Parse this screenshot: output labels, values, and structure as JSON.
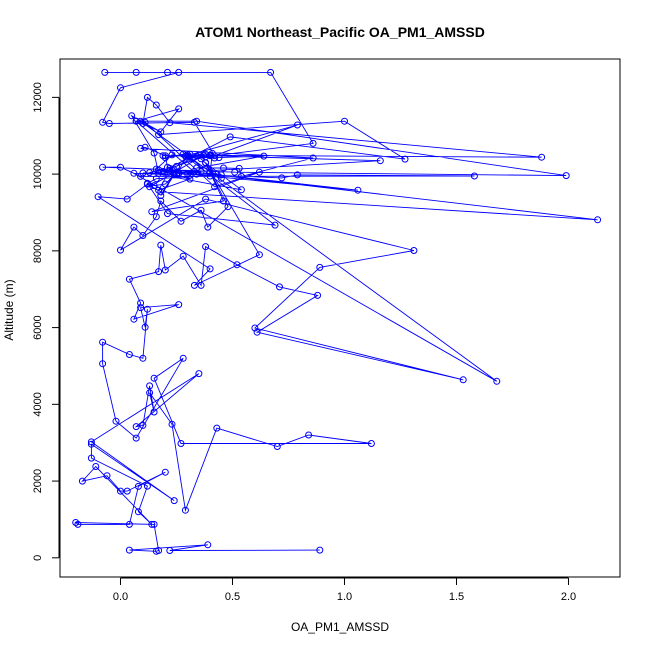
{
  "chart_data": {
    "type": "line",
    "title": "ATOM1 Northeast_Pacific OA_PM1_AMSSD",
    "xlabel": "OA_PM1_AMSSD",
    "ylabel": "Altitude (m)",
    "xlim": [
      -0.27,
      2.23
    ],
    "ylim": [
      -500,
      13000
    ],
    "x_ticks": [
      0.0,
      0.5,
      1.0,
      1.5,
      2.0
    ],
    "x_tick_labels": [
      "0.0",
      "0.5",
      "1.0",
      "1.5",
      "2.0"
    ],
    "y_ticks": [
      0,
      2000,
      4000,
      6000,
      8000,
      10000,
      12000
    ],
    "y_tick_labels": [
      "0",
      "2000",
      "4000",
      "6000",
      "8000",
      "10000",
      "12000"
    ],
    "grid": false,
    "legend": false,
    "marker": "open-circle",
    "series": [
      {
        "color": "#0000ff",
        "points": [
          [
            0.89,
            200
          ],
          [
            0.22,
            190
          ],
          [
            0.39,
            340
          ],
          [
            0.04,
            200
          ],
          [
            0.16,
            170
          ],
          [
            0.17,
            190
          ],
          [
            0.15,
            870
          ],
          [
            -0.2,
            920
          ],
          [
            -0.19,
            870
          ],
          [
            0.04,
            870
          ],
          [
            0.08,
            1860
          ],
          [
            0.2,
            2230
          ],
          [
            0.03,
            1740
          ],
          [
            0.0,
            1740
          ],
          [
            -0.06,
            2140
          ],
          [
            -0.17,
            2000
          ],
          [
            -0.11,
            2380
          ],
          [
            0.14,
            870
          ],
          [
            0.08,
            1200
          ],
          [
            0.12,
            1870
          ],
          [
            -0.13,
            2600
          ],
          [
            -0.13,
            2960
          ],
          [
            0.24,
            1490
          ],
          [
            -0.13,
            3020
          ],
          [
            0.35,
            4800
          ],
          [
            0.07,
            3420
          ],
          [
            0.1,
            3450
          ],
          [
            0.13,
            4480
          ],
          [
            0.15,
            3800
          ],
          [
            0.13,
            4300
          ],
          [
            0.23,
            3480
          ],
          [
            0.29,
            1240
          ],
          [
            0.43,
            3380
          ],
          [
            0.7,
            2900
          ],
          [
            0.84,
            3200
          ],
          [
            1.12,
            2980
          ],
          [
            0.27,
            2980
          ],
          [
            0.15,
            4680
          ],
          [
            0.28,
            5200
          ],
          [
            0.07,
            3120
          ],
          [
            -0.02,
            3560
          ],
          [
            -0.08,
            5060
          ],
          [
            -0.08,
            5620
          ],
          [
            0.04,
            5300
          ],
          [
            0.1,
            5200
          ],
          [
            0.12,
            6480
          ],
          [
            0.11,
            6010
          ],
          [
            0.09,
            6520
          ],
          [
            0.26,
            6600
          ],
          [
            0.06,
            6220
          ],
          [
            0.09,
            6640
          ],
          [
            0.04,
            7260
          ],
          [
            0.17,
            7460
          ],
          [
            0.18,
            8150
          ],
          [
            0.2,
            7500
          ],
          [
            0.28,
            7860
          ],
          [
            0.36,
            7100
          ],
          [
            0.38,
            8110
          ],
          [
            0.52,
            7640
          ],
          [
            0.71,
            7060
          ],
          [
            0.88,
            6840
          ],
          [
            0.61,
            5880
          ],
          [
            1.53,
            4640
          ],
          [
            0.6,
            5990
          ],
          [
            0.89,
            7570
          ],
          [
            1.31,
            8010
          ],
          [
            0.38,
            9350
          ],
          [
            0.0,
            8020
          ],
          [
            0.06,
            8620
          ],
          [
            0.1,
            8400
          ],
          [
            0.16,
            8890
          ],
          [
            0.18,
            9300
          ],
          [
            0.27,
            8770
          ],
          [
            0.36,
            9060
          ],
          [
            0.39,
            8620
          ],
          [
            0.48,
            9150
          ],
          [
            0.38,
            10300
          ],
          [
            0.62,
            7900
          ],
          [
            0.33,
            7100
          ],
          [
            0.4,
            7530
          ],
          [
            -0.1,
            9410
          ],
          [
            0.03,
            9350
          ],
          [
            0.12,
            9740
          ],
          [
            0.18,
            9540
          ],
          [
            2.13,
            8810
          ],
          [
            0.24,
            10110
          ],
          [
            1.06,
            9580
          ],
          [
            0.3,
            10000
          ],
          [
            0.72,
            9900
          ],
          [
            0.79,
            9980
          ],
          [
            1.58,
            9950
          ],
          [
            0.09,
            9940
          ],
          [
            0.0,
            10180
          ],
          [
            -0.08,
            10180
          ],
          [
            0.51,
            10050
          ],
          [
            1.99,
            9960
          ],
          [
            0.34,
            11380
          ],
          [
            0.07,
            11380
          ],
          [
            0.26,
            11700
          ],
          [
            0.17,
            11030
          ],
          [
            1.0,
            11380
          ],
          [
            1.27,
            10390
          ],
          [
            0.49,
            10970
          ],
          [
            0.17,
            10020
          ],
          [
            0.15,
            10550
          ],
          [
            0.05,
            11520
          ],
          [
            0.18,
            11100
          ],
          [
            0.1,
            11320
          ],
          [
            0.12,
            12000
          ],
          [
            0.16,
            11800
          ],
          [
            0.22,
            11340
          ],
          [
            1.88,
            10440
          ],
          [
            0.4,
            10490
          ],
          [
            0.3,
            10460
          ],
          [
            0.42,
            10420
          ],
          [
            0.38,
            10450
          ],
          [
            0.86,
            10800
          ],
          [
            0.67,
            12650
          ],
          [
            -0.07,
            12650
          ],
          [
            0.07,
            12650
          ],
          [
            0.21,
            12650
          ],
          [
            0.26,
            12650
          ],
          [
            0.0,
            12250
          ],
          [
            -0.08,
            11350
          ],
          [
            -0.05,
            11320
          ],
          [
            0.33,
            11350
          ],
          [
            0.42,
            10480
          ],
          [
            0.79,
            11280
          ],
          [
            0.29,
            10470
          ],
          [
            0.69,
            8670
          ],
          [
            0.21,
            8970
          ],
          [
            0.13,
            9670
          ],
          [
            0.37,
            10490
          ],
          [
            0.19,
            10480
          ],
          [
            0.3,
            10470
          ],
          [
            0.25,
            10200
          ],
          [
            0.35,
            10500
          ],
          [
            0.44,
            10430
          ],
          [
            0.64,
            10470
          ],
          [
            0.34,
            10160
          ],
          [
            0.46,
            10160
          ],
          [
            0.53,
            10150
          ],
          [
            0.54,
            9940
          ],
          [
            0.86,
            10420
          ],
          [
            0.09,
            10670
          ],
          [
            0.11,
            10700
          ],
          [
            0.2,
            10480
          ],
          [
            0.21,
            10180
          ],
          [
            0.25,
            10000
          ],
          [
            0.3,
            10500
          ],
          [
            0.32,
            10400
          ],
          [
            0.4,
            9950
          ],
          [
            0.16,
            10130
          ],
          [
            0.23,
            10500
          ],
          [
            0.36,
            10400
          ],
          [
            0.45,
            9890
          ],
          [
            0.28,
            10520
          ],
          [
            0.2,
            10430
          ],
          [
            0.31,
            10520
          ],
          [
            0.38,
            10520
          ],
          [
            0.4,
            10480
          ],
          [
            1.16,
            10350
          ],
          [
            0.26,
            10040
          ],
          [
            0.33,
            10070
          ],
          [
            0.22,
            10100
          ],
          [
            0.17,
            9580
          ],
          [
            0.31,
            9870
          ],
          [
            0.19,
            10070
          ],
          [
            0.34,
            10000
          ],
          [
            0.07,
            11380
          ],
          [
            0.11,
            11350
          ],
          [
            0.42,
            9670
          ],
          [
            0.62,
            10050
          ],
          [
            0.14,
            9020
          ],
          [
            0.46,
            9300
          ],
          [
            0.38,
            10290
          ],
          [
            0.54,
            9590
          ],
          [
            0.13,
            10040
          ],
          [
            0.17,
            10110
          ],
          [
            0.31,
            9970
          ],
          [
            0.36,
            10060
          ],
          [
            0.26,
            10010
          ],
          [
            0.22,
            10150
          ],
          [
            0.41,
            10540
          ],
          [
            0.4,
            10040
          ],
          [
            0.45,
            9980
          ],
          [
            0.16,
            9880
          ],
          [
            0.12,
            9760
          ],
          [
            0.15,
            9700
          ],
          [
            0.2,
            9740
          ],
          [
            0.24,
            9980
          ],
          [
            0.18,
            9440
          ],
          [
            0.24,
            10030
          ],
          [
            0.1,
            10030
          ],
          [
            0.25,
            9980
          ],
          [
            0.06,
            10020
          ],
          [
            1.68,
            4600
          ],
          [
            0.09,
            11380
          ]
        ]
      }
    ]
  }
}
